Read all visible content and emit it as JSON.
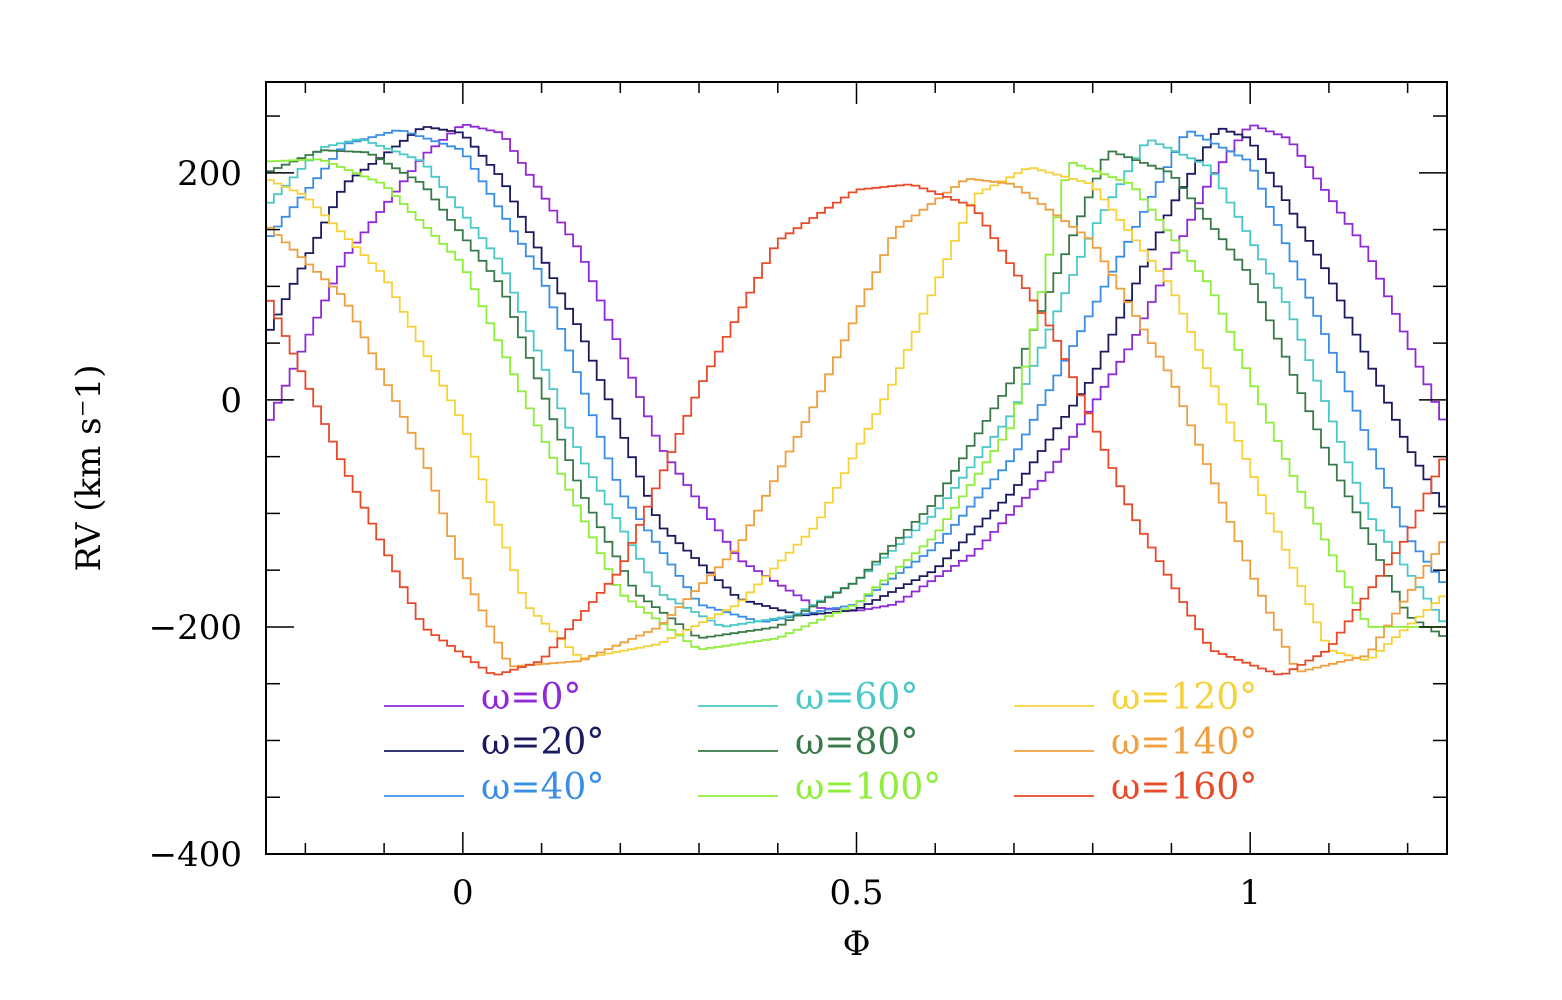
{
  "chart_data": {
    "type": "line",
    "xlabel": "Φ",
    "ylabel": "RV  (km s⁻1)",
    "xlim": [
      -0.25,
      1.25
    ],
    "ylim": [
      -400,
      280
    ],
    "x_ticks": [
      {
        "value": 0,
        "label": "0"
      },
      {
        "value": 0.5,
        "label": "0.5"
      },
      {
        "value": 1,
        "label": "1"
      }
    ],
    "y_ticks": [
      {
        "value": -400,
        "label": "−400"
      },
      {
        "value": -200,
        "label": "−200"
      },
      {
        "value": 0,
        "label": "0"
      },
      {
        "value": 200,
        "label": "200"
      }
    ],
    "grid": false,
    "legend_position": "bottom, three columns",
    "series": [
      {
        "name": "ω=0°",
        "omega": 0,
        "color": "#8e2ad6",
        "x": [
          -0.25,
          -0.15,
          -0.05,
          0.0,
          0.05,
          0.15,
          0.25,
          0.35,
          0.45,
          0.5,
          0.55,
          0.65,
          0.75,
          0.85,
          0.95,
          1.0,
          1.05,
          1.15,
          1.25
        ],
        "y": [
          -25,
          125,
          215,
          243,
          235,
          130,
          -40,
          -140,
          -183,
          -186,
          -180,
          -135,
          -60,
          50,
          195,
          243,
          230,
          130,
          -25
        ]
      },
      {
        "name": "ω=20°",
        "omega": 20,
        "color": "#1a1a5e",
        "x": [
          -0.25,
          -0.15,
          -0.05,
          0.0,
          0.05,
          0.15,
          0.25,
          0.35,
          0.43,
          0.5,
          0.6,
          0.7,
          0.8,
          0.9,
          0.96,
          1.0,
          1.1,
          1.2,
          1.25
        ],
        "y": [
          55,
          190,
          241,
          235,
          195,
          60,
          -110,
          -175,
          -190,
          -185,
          -150,
          -80,
          20,
          170,
          240,
          230,
          110,
          -40,
          -100
        ]
      },
      {
        "name": "ω=40°",
        "omega": 40,
        "color": "#3a8ee6",
        "x": [
          -0.25,
          -0.15,
          -0.08,
          0.0,
          0.1,
          0.2,
          0.3,
          0.38,
          0.5,
          0.6,
          0.7,
          0.8,
          0.92,
          1.0,
          1.1,
          1.2,
          1.25
        ],
        "y": [
          140,
          225,
          238,
          220,
          110,
          -80,
          -180,
          -196,
          -180,
          -130,
          -50,
          80,
          238,
          210,
          50,
          -120,
          -165
        ]
      },
      {
        "name": "ω=60°",
        "omega": 60,
        "color": "#4ac8c8",
        "x": [
          -0.25,
          -0.18,
          -0.13,
          -0.05,
          0.05,
          0.15,
          0.25,
          0.33,
          0.42,
          0.5,
          0.6,
          0.7,
          0.8,
          0.87,
          0.95,
          1.05,
          1.15,
          1.25
        ],
        "y": [
          170,
          222,
          230,
          210,
          120,
          -50,
          -170,
          -200,
          -190,
          -160,
          -100,
          -10,
          150,
          230,
          205,
          80,
          -100,
          -200
        ]
      },
      {
        "name": "ω=80°",
        "omega": 80,
        "color": "#3a7a4a",
        "x": [
          -0.25,
          -0.18,
          -0.12,
          -0.05,
          0.05,
          0.15,
          0.22,
          0.3,
          0.4,
          0.5,
          0.6,
          0.7,
          0.82,
          0.9,
          1.0,
          1.1,
          1.2,
          1.25
        ],
        "y": [
          200,
          220,
          218,
          190,
          100,
          -80,
          -170,
          -210,
          -200,
          -160,
          -90,
          20,
          220,
          200,
          110,
          -50,
          -190,
          -210
        ]
      },
      {
        "name": "ω=100°",
        "omega": 100,
        "color": "#8eee3a",
        "x": [
          -0.25,
          -0.18,
          -0.1,
          0.0,
          0.1,
          0.2,
          0.3,
          0.4,
          0.5,
          0.6,
          0.7,
          0.77,
          0.85,
          0.95,
          1.05,
          1.15,
          1.25
        ],
        "y": [
          210,
          212,
          190,
          120,
          -30,
          -170,
          -220,
          -210,
          -180,
          -120,
          -20,
          210,
          190,
          100,
          -60,
          -200,
          -200
        ]
      },
      {
        "name": "ω=120°",
        "omega": 120,
        "color": "#f6d23a",
        "x": [
          -0.25,
          -0.2,
          -0.1,
          0.0,
          0.08,
          0.15,
          0.25,
          0.35,
          0.45,
          0.55,
          0.65,
          0.72,
          0.8,
          0.9,
          1.0,
          1.1,
          1.15,
          1.25
        ],
        "y": [
          195,
          180,
          110,
          -20,
          -180,
          -228,
          -215,
          -180,
          -110,
          20,
          180,
          205,
          190,
          100,
          -60,
          -220,
          -230,
          -170
        ]
      },
      {
        "name": "ω=140°",
        "omega": 140,
        "color": "#eea040",
        "x": [
          -0.25,
          -0.15,
          -0.05,
          0.0,
          0.06,
          0.15,
          0.25,
          0.35,
          0.45,
          0.55,
          0.64,
          0.7,
          0.8,
          0.9,
          1.0,
          1.06,
          1.15,
          1.25
        ],
        "y": [
          155,
          90,
          -50,
          -150,
          -235,
          -230,
          -200,
          -130,
          0,
          150,
          195,
          190,
          140,
          20,
          -150,
          -240,
          -225,
          -120
        ]
      },
      {
        "name": "ω=160°",
        "omega": 160,
        "color": "#e84a2a",
        "x": [
          -0.25,
          -0.15,
          -0.05,
          0.04,
          0.1,
          0.2,
          0.3,
          0.4,
          0.5,
          0.57,
          0.65,
          0.75,
          0.85,
          0.95,
          1.04,
          1.1,
          1.2,
          1.25
        ],
        "y": [
          95,
          -60,
          -200,
          -243,
          -230,
          -150,
          10,
          140,
          185,
          190,
          170,
          60,
          -100,
          -220,
          -243,
          -220,
          -120,
          -45
        ]
      }
    ]
  }
}
